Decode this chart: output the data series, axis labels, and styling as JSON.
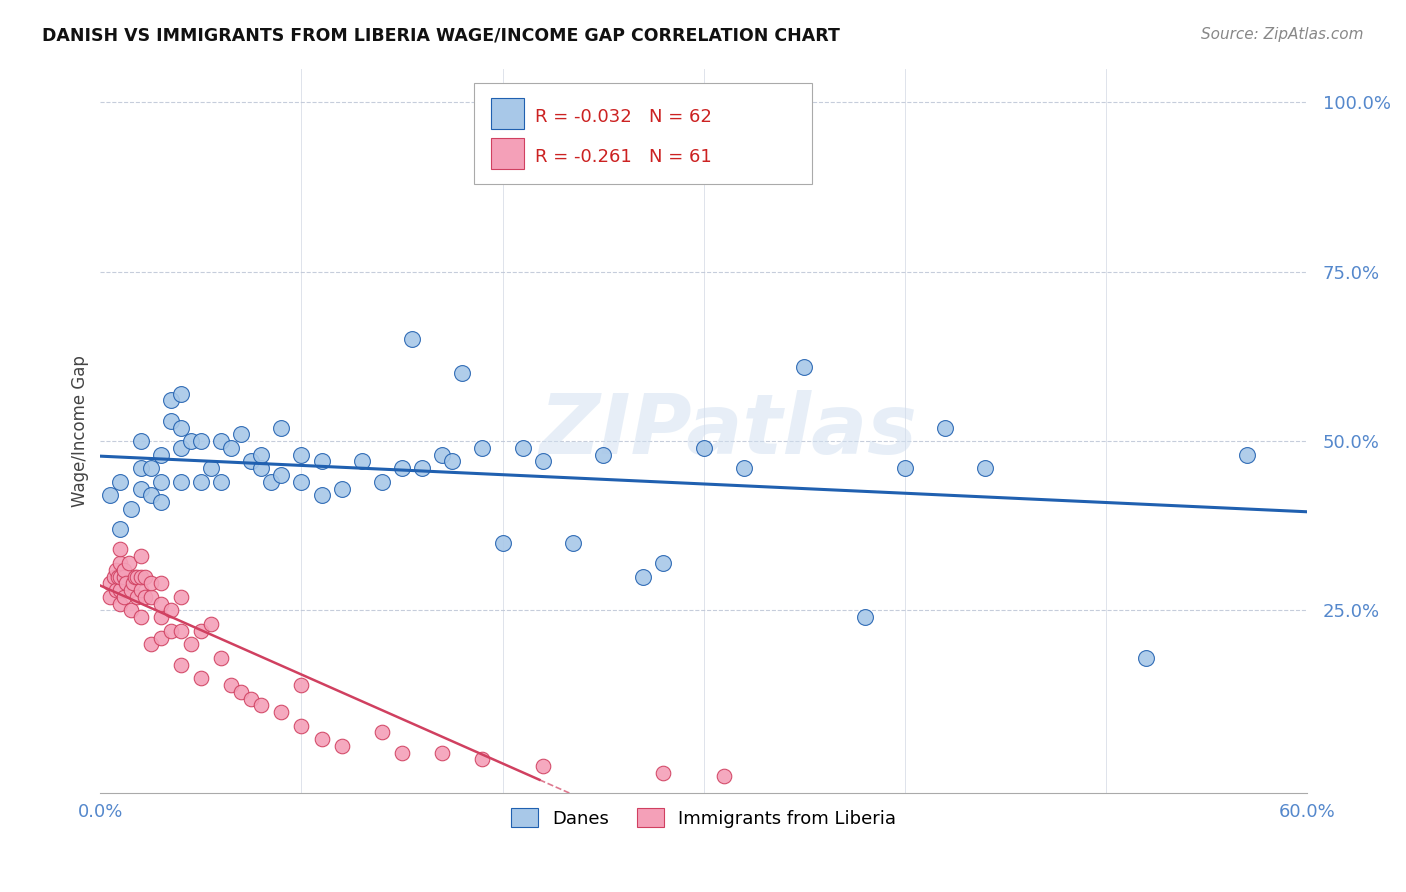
{
  "title": "DANISH VS IMMIGRANTS FROM LIBERIA WAGE/INCOME GAP CORRELATION CHART",
  "source": "Source: ZipAtlas.com",
  "ylabel": "Wage/Income Gap",
  "legend_danes": "Danes",
  "legend_immigrants": "Immigrants from Liberia",
  "r_danes": -0.032,
  "n_danes": 62,
  "r_immigrants": -0.261,
  "n_immigrants": 61,
  "xlim": [
    0.0,
    0.6
  ],
  "ylim": [
    -0.02,
    1.05
  ],
  "yticks": [
    0.25,
    0.5,
    0.75,
    1.0
  ],
  "ytick_labels": [
    "25.0%",
    "50.0%",
    "75.0%",
    "100.0%"
  ],
  "xticks": [
    0.0,
    0.1,
    0.2,
    0.3,
    0.4,
    0.5,
    0.6
  ],
  "xtick_labels": [
    "0.0%",
    "",
    "",
    "",
    "",
    "",
    "60.0%"
  ],
  "color_danes": "#a8c8e8",
  "color_danes_line": "#2060b0",
  "color_immigrants": "#f4a0b8",
  "color_immigrants_line": "#d04060",
  "background_color": "#ffffff",
  "grid_color": "#c0c8d8",
  "watermark": "ZIPatlas",
  "danes_x": [
    0.005,
    0.01,
    0.01,
    0.015,
    0.02,
    0.02,
    0.02,
    0.025,
    0.025,
    0.03,
    0.03,
    0.03,
    0.035,
    0.035,
    0.04,
    0.04,
    0.04,
    0.04,
    0.045,
    0.05,
    0.05,
    0.055,
    0.06,
    0.06,
    0.065,
    0.07,
    0.075,
    0.08,
    0.08,
    0.085,
    0.09,
    0.09,
    0.1,
    0.1,
    0.11,
    0.11,
    0.12,
    0.13,
    0.14,
    0.15,
    0.155,
    0.16,
    0.17,
    0.175,
    0.18,
    0.19,
    0.2,
    0.21,
    0.22,
    0.235,
    0.25,
    0.27,
    0.28,
    0.3,
    0.32,
    0.35,
    0.38,
    0.4,
    0.42,
    0.44,
    0.52,
    0.57
  ],
  "danes_y": [
    0.42,
    0.37,
    0.44,
    0.4,
    0.43,
    0.46,
    0.5,
    0.42,
    0.46,
    0.41,
    0.44,
    0.48,
    0.53,
    0.56,
    0.44,
    0.49,
    0.52,
    0.57,
    0.5,
    0.44,
    0.5,
    0.46,
    0.44,
    0.5,
    0.49,
    0.51,
    0.47,
    0.46,
    0.48,
    0.44,
    0.45,
    0.52,
    0.44,
    0.48,
    0.42,
    0.47,
    0.43,
    0.47,
    0.44,
    0.46,
    0.65,
    0.46,
    0.48,
    0.47,
    0.6,
    0.49,
    0.35,
    0.49,
    0.47,
    0.35,
    0.48,
    0.3,
    0.32,
    0.49,
    0.46,
    0.61,
    0.24,
    0.46,
    0.52,
    0.46,
    0.18,
    0.48
  ],
  "immigrants_x": [
    0.005,
    0.005,
    0.007,
    0.008,
    0.008,
    0.009,
    0.01,
    0.01,
    0.01,
    0.01,
    0.01,
    0.012,
    0.012,
    0.012,
    0.013,
    0.014,
    0.015,
    0.015,
    0.016,
    0.017,
    0.018,
    0.018,
    0.02,
    0.02,
    0.02,
    0.02,
    0.022,
    0.022,
    0.025,
    0.025,
    0.025,
    0.03,
    0.03,
    0.03,
    0.03,
    0.035,
    0.035,
    0.04,
    0.04,
    0.04,
    0.045,
    0.05,
    0.05,
    0.055,
    0.06,
    0.065,
    0.07,
    0.075,
    0.08,
    0.09,
    0.1,
    0.1,
    0.11,
    0.12,
    0.14,
    0.15,
    0.17,
    0.19,
    0.22,
    0.28,
    0.31
  ],
  "immigrants_y": [
    0.27,
    0.29,
    0.3,
    0.28,
    0.31,
    0.3,
    0.26,
    0.28,
    0.3,
    0.32,
    0.34,
    0.27,
    0.3,
    0.31,
    0.29,
    0.32,
    0.25,
    0.28,
    0.29,
    0.3,
    0.27,
    0.3,
    0.24,
    0.28,
    0.3,
    0.33,
    0.27,
    0.3,
    0.2,
    0.27,
    0.29,
    0.21,
    0.24,
    0.26,
    0.29,
    0.22,
    0.25,
    0.17,
    0.22,
    0.27,
    0.2,
    0.15,
    0.22,
    0.23,
    0.18,
    0.14,
    0.13,
    0.12,
    0.11,
    0.1,
    0.08,
    0.14,
    0.06,
    0.05,
    0.07,
    0.04,
    0.04,
    0.03,
    0.02,
    0.01,
    0.005
  ]
}
